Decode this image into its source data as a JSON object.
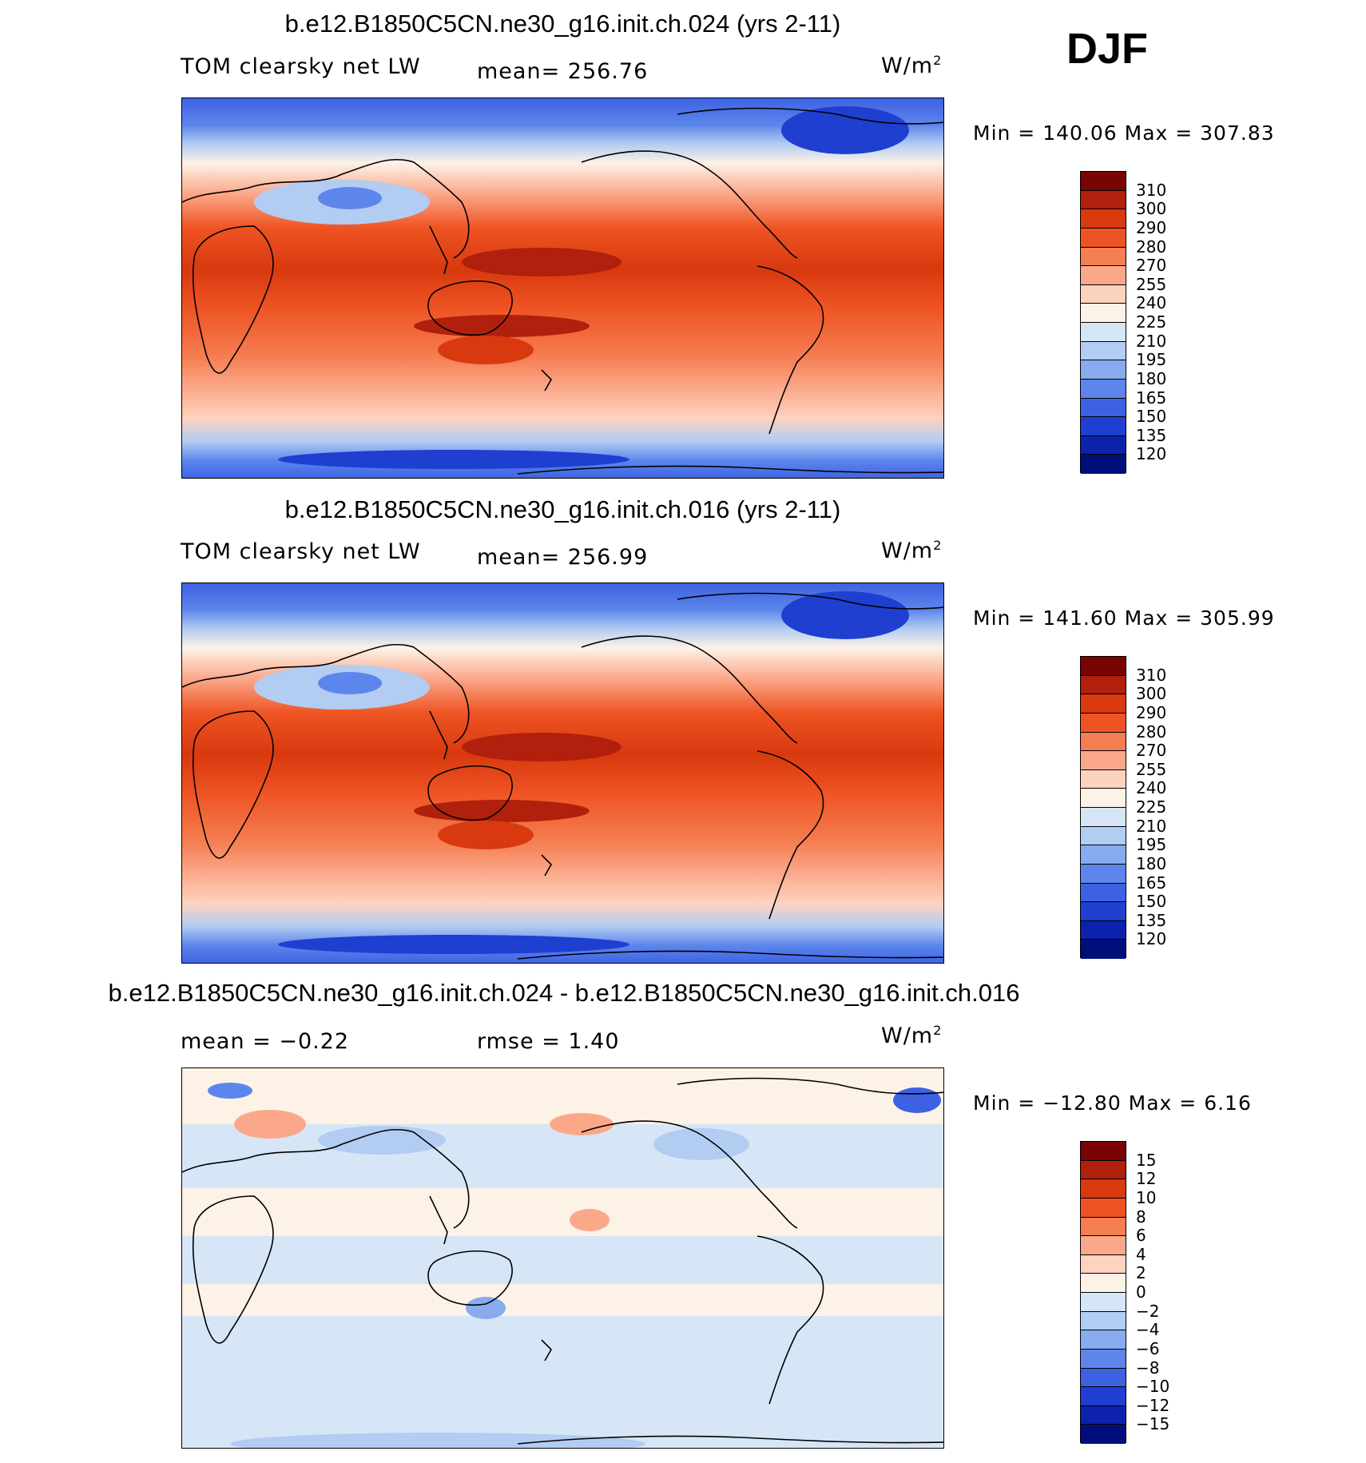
{
  "season": "DJF",
  "panels": [
    {
      "title": "b.e12.B1850C5CN.ne30_g16.init.ch.024 (yrs 2-11)",
      "left_label": "TOM clearsky net LW",
      "center_label": "mean=  256.76",
      "units": "W/m",
      "units_sup": "2",
      "minmax": "Min  =  140.06  Max  =  307.83",
      "colorbar_labels": [
        "310",
        "300",
        "290",
        "280",
        "270",
        "255",
        "240",
        "225",
        "210",
        "195",
        "180",
        "165",
        "150",
        "135",
        "120"
      ]
    },
    {
      "title": "b.e12.B1850C5CN.ne30_g16.init.ch.016 (yrs 2-11)",
      "left_label": "TOM clearsky net LW",
      "center_label": "mean=  256.99",
      "units": "W/m",
      "units_sup": "2",
      "minmax": "Min  =  141.60  Max  =  305.99",
      "colorbar_labels": [
        "310",
        "300",
        "290",
        "280",
        "270",
        "255",
        "240",
        "225",
        "210",
        "195",
        "180",
        "165",
        "150",
        "135",
        "120"
      ]
    },
    {
      "title": "b.e12.B1850C5CN.ne30_g16.init.ch.024 - b.e12.B1850C5CN.ne30_g16.init.ch.016",
      "left_label": "mean  =    −0.22",
      "center_label": "rmse  =     1.40",
      "units": "W/m",
      "units_sup": "2",
      "minmax": "Min  =  −12.80  Max  =     6.16",
      "colorbar_labels": [
        "15",
        "12",
        "10",
        "8",
        "6",
        "4",
        "2",
        "0",
        "−2",
        "−4",
        "−6",
        "−8",
        "−10",
        "−12",
        "−15"
      ]
    }
  ],
  "colorbar_colors": [
    "#7a0403",
    "#b0200c",
    "#d8390f",
    "#ee5423",
    "#f57e52",
    "#fba88a",
    "#fdd3bf",
    "#fdf2e6",
    "#d6e6f6",
    "#b2ccf2",
    "#88aaef",
    "#5d86ec",
    "#3c62e2",
    "#1f3fd0",
    "#0c22ad",
    "#000e7a"
  ],
  "colors": {
    "land_outline": "#000000",
    "background": "#ffffff"
  }
}
